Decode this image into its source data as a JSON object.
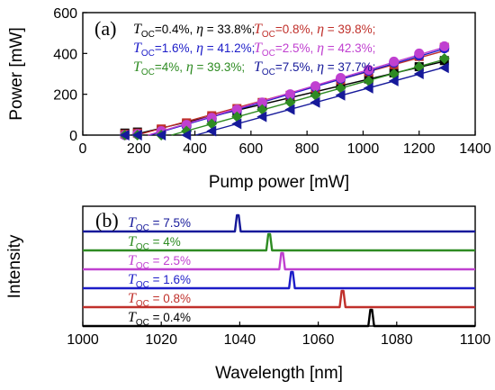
{
  "chart_data": [
    {
      "type": "scatter",
      "panel_label": "(a)",
      "xlabel": "Pump power [mW]",
      "ylabel": "Power [mW]",
      "xlim": [
        0,
        1400
      ],
      "ylim": [
        0,
        600
      ],
      "xticks": [
        "0",
        "200",
        "400",
        "600",
        "800",
        "1000",
        "1200",
        "1400"
      ],
      "yticks": [
        "0",
        "200",
        "400",
        "600"
      ],
      "x": [
        150,
        195,
        280,
        370,
        460,
        550,
        640,
        740,
        830,
        920,
        1020,
        1110,
        1200,
        1290
      ],
      "legend_symbol": "T",
      "legend_subscript": "OC",
      "legend_eta": "η",
      "series": [
        {
          "name": "0.4%",
          "efficiency": "33.8%",
          "color": "#000000",
          "marker": "square",
          "values": [
            10,
            15,
            25,
            55,
            85,
            115,
            150,
            180,
            210,
            245,
            275,
            305,
            335,
            365
          ]
        },
        {
          "name": "0.8%",
          "efficiency": "39.8%",
          "color": "#c0302b",
          "marker": "square",
          "values": [
            5,
            10,
            30,
            60,
            95,
            130,
            160,
            195,
            230,
            270,
            310,
            345,
            385,
            430
          ]
        },
        {
          "name": "1.6%",
          "efficiency": "41.2%",
          "color": "#1c1cc8",
          "marker": "circle",
          "values": [
            0,
            5,
            15,
            45,
            80,
            120,
            155,
            195,
            235,
            275,
            315,
            355,
            390,
            425
          ]
        },
        {
          "name": "2.5%",
          "efficiency": "42.3%",
          "color": "#c040d0",
          "marker": "circle",
          "values": [
            0,
            5,
            20,
            50,
            85,
            125,
            160,
            200,
            240,
            280,
            320,
            360,
            400,
            435
          ]
        },
        {
          "name": "4%",
          "efficiency": "39.3%",
          "color": "#2e8b22",
          "marker": "diamond",
          "values": [
            0,
            0,
            0,
            20,
            55,
            90,
            125,
            160,
            195,
            230,
            265,
            300,
            335,
            375
          ]
        },
        {
          "name": "7.5%",
          "efficiency": "37.7%",
          "color": "#16199a",
          "marker": "triangle-left",
          "values": [
            0,
            0,
            0,
            0,
            20,
            55,
            90,
            125,
            160,
            195,
            230,
            265,
            300,
            330
          ]
        }
      ],
      "legend_order": [
        0,
        1,
        2,
        3,
        4,
        5
      ]
    },
    {
      "type": "line",
      "panel_label": "(b)",
      "xlabel": "Wavelength [nm]",
      "ylabel": "Intensity",
      "xlim": [
        1000,
        1100
      ],
      "xticks": [
        "1000",
        "1020",
        "1040",
        "1060",
        "1080",
        "1100"
      ],
      "legend_symbol": "T",
      "legend_subscript": "OC",
      "series": [
        {
          "name": "7.5%",
          "color": "#16199a",
          "peak_nm": 1039.5
        },
        {
          "name": "4%",
          "color": "#2e8b22",
          "peak_nm": 1047.5
        },
        {
          "name": "2.5%",
          "color": "#c040d0",
          "peak_nm": 1050.8
        },
        {
          "name": "1.6%",
          "color": "#1c1cc8",
          "peak_nm": 1053.3
        },
        {
          "name": "0.8%",
          "color": "#c0302b",
          "peak_nm": 1066.2
        },
        {
          "name": "0.4%",
          "color": "#000000",
          "peak_nm": 1073.5
        }
      ]
    }
  ]
}
